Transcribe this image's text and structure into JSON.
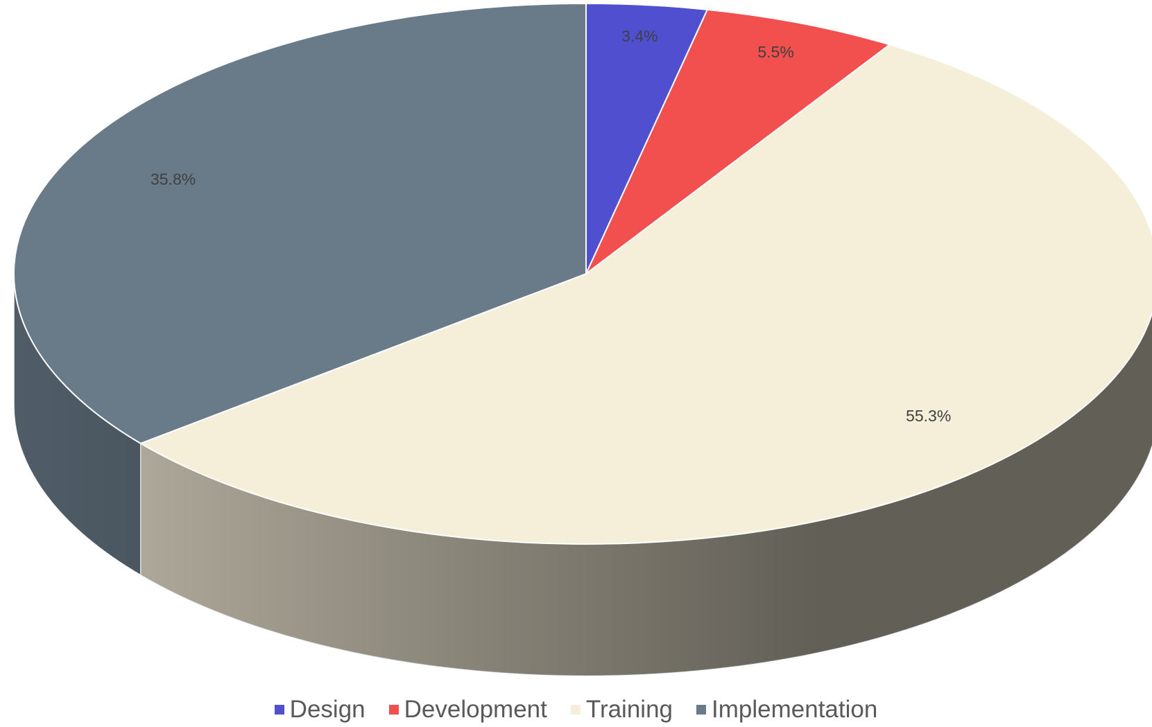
{
  "chart_data": {
    "type": "pie3d",
    "categories": [
      "Design",
      "Development",
      "Training",
      "Implementation"
    ],
    "values": [
      3.4,
      5.5,
      55.3,
      35.8
    ],
    "value_labels": [
      "3.4%",
      "5.5%",
      "55.3%",
      "35.8%"
    ],
    "colors": [
      "#4f4fcf",
      "#f24f4f",
      "#f5eed8",
      "#697b88"
    ],
    "legend": "bottom"
  }
}
